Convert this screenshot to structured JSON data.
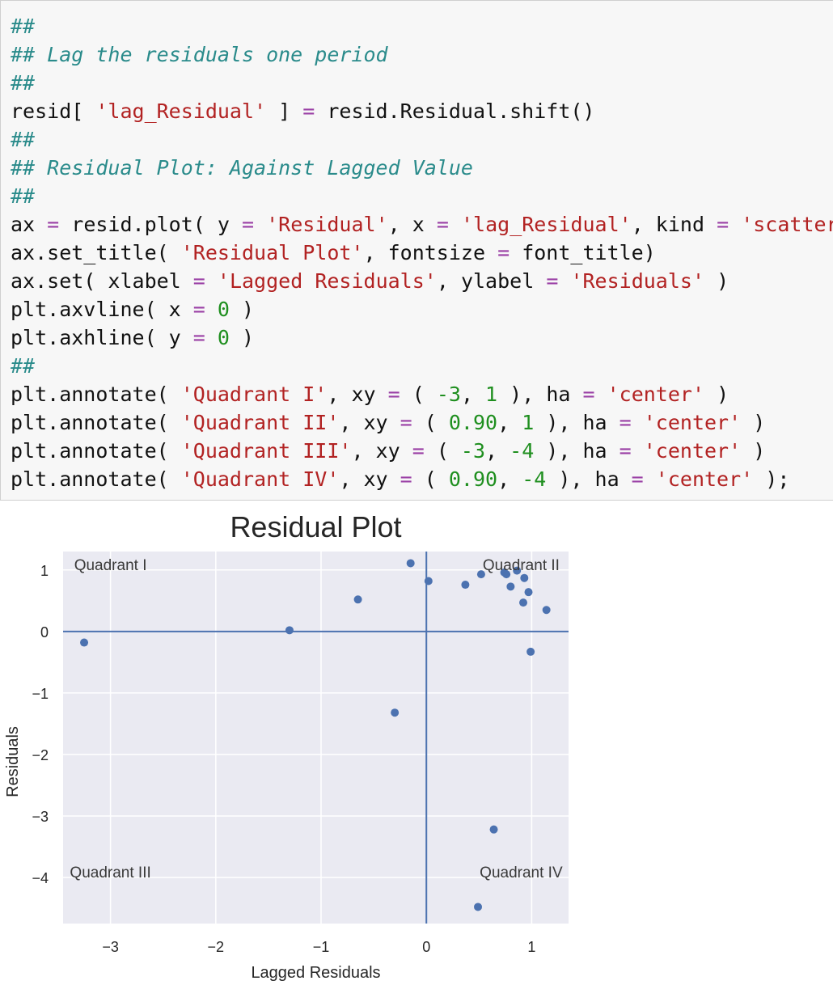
{
  "notebook": {
    "code_cell": {
      "lines": [
        [
          {
            "t": "##",
            "c": "comment"
          }
        ],
        [
          {
            "t": "## Lag the residuals one period",
            "c": "comment"
          }
        ],
        [
          {
            "t": "##",
            "c": "comment"
          }
        ],
        [
          {
            "t": "resid[ ",
            "c": "plain"
          },
          {
            "t": "'lag_Residual'",
            "c": "string"
          },
          {
            "t": " ] ",
            "c": "plain"
          },
          {
            "t": "=",
            "c": "op"
          },
          {
            "t": " resid.Residual.shift()",
            "c": "plain"
          }
        ],
        [
          {
            "t": "##",
            "c": "comment"
          }
        ],
        [
          {
            "t": "## Residual Plot: Against Lagged Value",
            "c": "comment"
          }
        ],
        [
          {
            "t": "##",
            "c": "comment"
          }
        ],
        [
          {
            "t": "ax ",
            "c": "plain"
          },
          {
            "t": "=",
            "c": "op"
          },
          {
            "t": " resid.plot( y ",
            "c": "plain"
          },
          {
            "t": "=",
            "c": "op"
          },
          {
            "t": " ",
            "c": "plain"
          },
          {
            "t": "'Residual'",
            "c": "string"
          },
          {
            "t": ", x ",
            "c": "plain"
          },
          {
            "t": "=",
            "c": "op"
          },
          {
            "t": " ",
            "c": "plain"
          },
          {
            "t": "'lag_Residual'",
            "c": "string"
          },
          {
            "t": ", kind ",
            "c": "plain"
          },
          {
            "t": "=",
            "c": "op"
          },
          {
            "t": " ",
            "c": "plain"
          },
          {
            "t": "'scatter'",
            "c": "string"
          },
          {
            "t": " )",
            "c": "plain"
          }
        ],
        [
          {
            "t": "ax.set_title( ",
            "c": "plain"
          },
          {
            "t": "'Residual Plot'",
            "c": "string"
          },
          {
            "t": ", fontsize ",
            "c": "plain"
          },
          {
            "t": "=",
            "c": "op"
          },
          {
            "t": " font_title)",
            "c": "plain"
          }
        ],
        [
          {
            "t": "ax.set( xlabel ",
            "c": "plain"
          },
          {
            "t": "=",
            "c": "op"
          },
          {
            "t": " ",
            "c": "plain"
          },
          {
            "t": "'Lagged Residuals'",
            "c": "string"
          },
          {
            "t": ", ylabel ",
            "c": "plain"
          },
          {
            "t": "=",
            "c": "op"
          },
          {
            "t": " ",
            "c": "plain"
          },
          {
            "t": "'Residuals'",
            "c": "string"
          },
          {
            "t": " )",
            "c": "plain"
          }
        ],
        [
          {
            "t": "plt.axvline( x ",
            "c": "plain"
          },
          {
            "t": "=",
            "c": "op"
          },
          {
            "t": " ",
            "c": "plain"
          },
          {
            "t": "0",
            "c": "number"
          },
          {
            "t": " )",
            "c": "plain"
          }
        ],
        [
          {
            "t": "plt.axhline( y ",
            "c": "plain"
          },
          {
            "t": "=",
            "c": "op"
          },
          {
            "t": " ",
            "c": "plain"
          },
          {
            "t": "0",
            "c": "number"
          },
          {
            "t": " )",
            "c": "plain"
          }
        ],
        [
          {
            "t": "##",
            "c": "comment"
          }
        ],
        [
          {
            "t": "plt.annotate( ",
            "c": "plain"
          },
          {
            "t": "'Quadrant I'",
            "c": "string"
          },
          {
            "t": ", xy ",
            "c": "plain"
          },
          {
            "t": "=",
            "c": "op"
          },
          {
            "t": " ( ",
            "c": "plain"
          },
          {
            "t": "-3",
            "c": "number"
          },
          {
            "t": ", ",
            "c": "plain"
          },
          {
            "t": "1",
            "c": "number"
          },
          {
            "t": " ), ha ",
            "c": "plain"
          },
          {
            "t": "=",
            "c": "op"
          },
          {
            "t": " ",
            "c": "plain"
          },
          {
            "t": "'center'",
            "c": "string"
          },
          {
            "t": " )",
            "c": "plain"
          }
        ],
        [
          {
            "t": "plt.annotate( ",
            "c": "plain"
          },
          {
            "t": "'Quadrant II'",
            "c": "string"
          },
          {
            "t": ", xy ",
            "c": "plain"
          },
          {
            "t": "=",
            "c": "op"
          },
          {
            "t": " ( ",
            "c": "plain"
          },
          {
            "t": "0.90",
            "c": "number"
          },
          {
            "t": ", ",
            "c": "plain"
          },
          {
            "t": "1",
            "c": "number"
          },
          {
            "t": " ), ha ",
            "c": "plain"
          },
          {
            "t": "=",
            "c": "op"
          },
          {
            "t": " ",
            "c": "plain"
          },
          {
            "t": "'center'",
            "c": "string"
          },
          {
            "t": " )",
            "c": "plain"
          }
        ],
        [
          {
            "t": "plt.annotate( ",
            "c": "plain"
          },
          {
            "t": "'Quadrant III'",
            "c": "string"
          },
          {
            "t": ", xy ",
            "c": "plain"
          },
          {
            "t": "=",
            "c": "op"
          },
          {
            "t": " ( ",
            "c": "plain"
          },
          {
            "t": "-3",
            "c": "number"
          },
          {
            "t": ", ",
            "c": "plain"
          },
          {
            "t": "-4",
            "c": "number"
          },
          {
            "t": " ), ha ",
            "c": "plain"
          },
          {
            "t": "=",
            "c": "op"
          },
          {
            "t": " ",
            "c": "plain"
          },
          {
            "t": "'center'",
            "c": "string"
          },
          {
            "t": " )",
            "c": "plain"
          }
        ],
        [
          {
            "t": "plt.annotate( ",
            "c": "plain"
          },
          {
            "t": "'Quadrant IV'",
            "c": "string"
          },
          {
            "t": ", xy ",
            "c": "plain"
          },
          {
            "t": "=",
            "c": "op"
          },
          {
            "t": " ( ",
            "c": "plain"
          },
          {
            "t": "0.90",
            "c": "number"
          },
          {
            "t": ", ",
            "c": "plain"
          },
          {
            "t": "-4",
            "c": "number"
          },
          {
            "t": " ), ha ",
            "c": "plain"
          },
          {
            "t": "=",
            "c": "op"
          },
          {
            "t": " ",
            "c": "plain"
          },
          {
            "t": "'center'",
            "c": "string"
          },
          {
            "t": " );",
            "c": "plain"
          }
        ]
      ]
    }
  },
  "colors": {
    "comment": "#2a8b8b",
    "string": "#b22222",
    "number": "#1f8f1f",
    "op": "#9a3fa5",
    "plain": "#111111",
    "plot_background": "#eaeaf2",
    "grid": "#ffffff",
    "marker": "#4c72b0",
    "ref_line": "#4c72b0",
    "text": "#262626"
  },
  "chart_data": {
    "type": "scatter",
    "title": "Residual Plot",
    "xlabel": "Lagged Residuals",
    "ylabel": "Residuals",
    "xlim": [
      -3.45,
      1.35
    ],
    "ylim": [
      -4.75,
      1.3
    ],
    "xticks": [
      -3,
      -2,
      -1,
      0,
      1
    ],
    "xtick_labels": [
      "−3",
      "−2",
      "−1",
      "0",
      "1"
    ],
    "yticks": [
      1,
      0,
      -1,
      -2,
      -3,
      -4
    ],
    "ytick_labels": [
      "1",
      "0",
      "−1",
      "−2",
      "−3",
      "−4"
    ],
    "grid": true,
    "reference_lines": {
      "x": 0,
      "y": 0
    },
    "points": [
      {
        "x": -3.25,
        "y": -0.18
      },
      {
        "x": -1.3,
        "y": 0.02
      },
      {
        "x": -0.65,
        "y": 0.52
      },
      {
        "x": -0.3,
        "y": -1.32
      },
      {
        "x": -0.15,
        "y": 1.11
      },
      {
        "x": 0.02,
        "y": 0.82
      },
      {
        "x": 0.37,
        "y": 0.76
      },
      {
        "x": 0.52,
        "y": 0.93
      },
      {
        "x": 0.74,
        "y": 0.96
      },
      {
        "x": 0.76,
        "y": 0.93
      },
      {
        "x": 0.8,
        "y": 0.73
      },
      {
        "x": 0.86,
        "y": 0.99
      },
      {
        "x": 0.93,
        "y": 0.87
      },
      {
        "x": 0.92,
        "y": 0.47
      },
      {
        "x": 0.97,
        "y": 0.64
      },
      {
        "x": 1.14,
        "y": 0.35
      },
      {
        "x": 0.99,
        "y": -0.33
      },
      {
        "x": 0.64,
        "y": -3.22
      },
      {
        "x": 0.49,
        "y": -4.48
      }
    ],
    "annotations": [
      {
        "text": "Quadrant I",
        "x": -3,
        "y": 1
      },
      {
        "text": "Quadrant II",
        "x": 0.9,
        "y": 1
      },
      {
        "text": "Quadrant III",
        "x": -3,
        "y": -4
      },
      {
        "text": "Quadrant IV",
        "x": 0.9,
        "y": -4
      }
    ]
  }
}
